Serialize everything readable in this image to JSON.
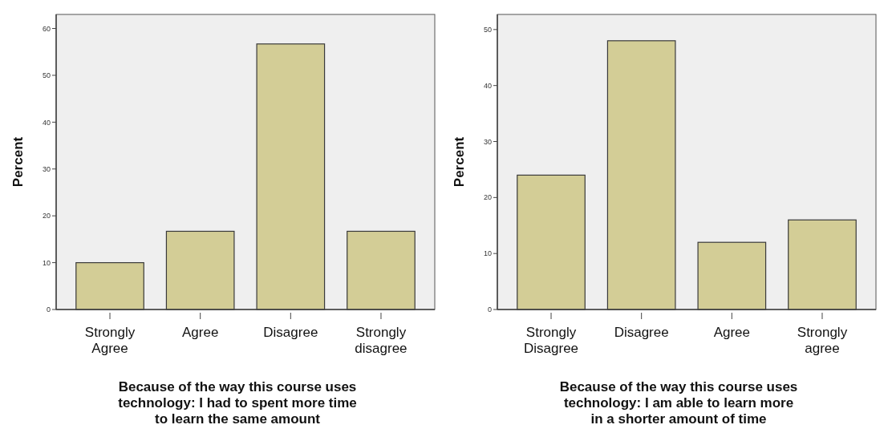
{
  "chart_data": [
    {
      "type": "bar",
      "categories": [
        "Strongly Agree",
        "Agree",
        "Disagree",
        "Strongly disagree"
      ],
      "values": [
        10,
        16.7,
        56.7,
        16.7
      ],
      "color": "#d3cd96",
      "ylabel": "Percent",
      "xlabel": "Because of the way this course uses technology: I had to spent more time to learn the same amount",
      "ylim": [
        0,
        63
      ],
      "yticks": [
        0,
        10,
        20,
        30,
        40,
        50,
        60
      ],
      "grid": false
    },
    {
      "type": "bar",
      "categories": [
        "Strongly Disagree",
        "Disagree",
        "Agree",
        "Strongly agree"
      ],
      "values": [
        24,
        48,
        12,
        16
      ],
      "color": "#d3cd96",
      "ylabel": "Percent",
      "xlabel": "Because of the way this course uses technology: I am able to learn more in a shorter amount of time",
      "ylim": [
        0,
        52.7
      ],
      "yticks": [
        0,
        10,
        20,
        30,
        40,
        50
      ],
      "grid": false
    }
  ]
}
